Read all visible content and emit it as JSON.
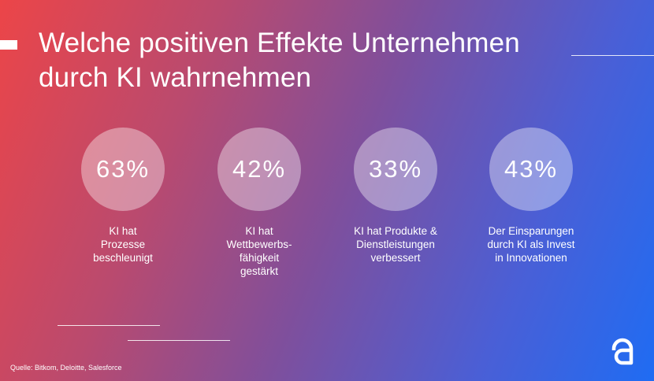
{
  "title": {
    "line1": "Welche positiven Effekte Unternehmen",
    "line2": "durch KI wahrnehmen"
  },
  "stats": [
    {
      "value": "63%",
      "label_lines": [
        "KI hat",
        "Prozesse",
        "beschleunigt"
      ]
    },
    {
      "value": "42%",
      "label_lines": [
        "KI hat",
        "Wettbewerbs-",
        "fähigkeit",
        "gestärkt"
      ]
    },
    {
      "value": "33%",
      "label_lines": [
        "KI hat Produkte &",
        "Dienstleistungen",
        "verbessert"
      ]
    },
    {
      "value": "43%",
      "label_lines": [
        "Der Einsparungen",
        "durch KI als Invest",
        "in Innovationen"
      ]
    }
  ],
  "source": "Quelle: Bitkom, Deloitte, Salesforce",
  "logo": {
    "icon": "brand-logo-icon",
    "color": "#ffffff"
  },
  "colors": {
    "gradient_start": "#ec4548",
    "gradient_end": "#1f6cf3",
    "circle_fill": "rgba(255,255,255,0.38)"
  }
}
